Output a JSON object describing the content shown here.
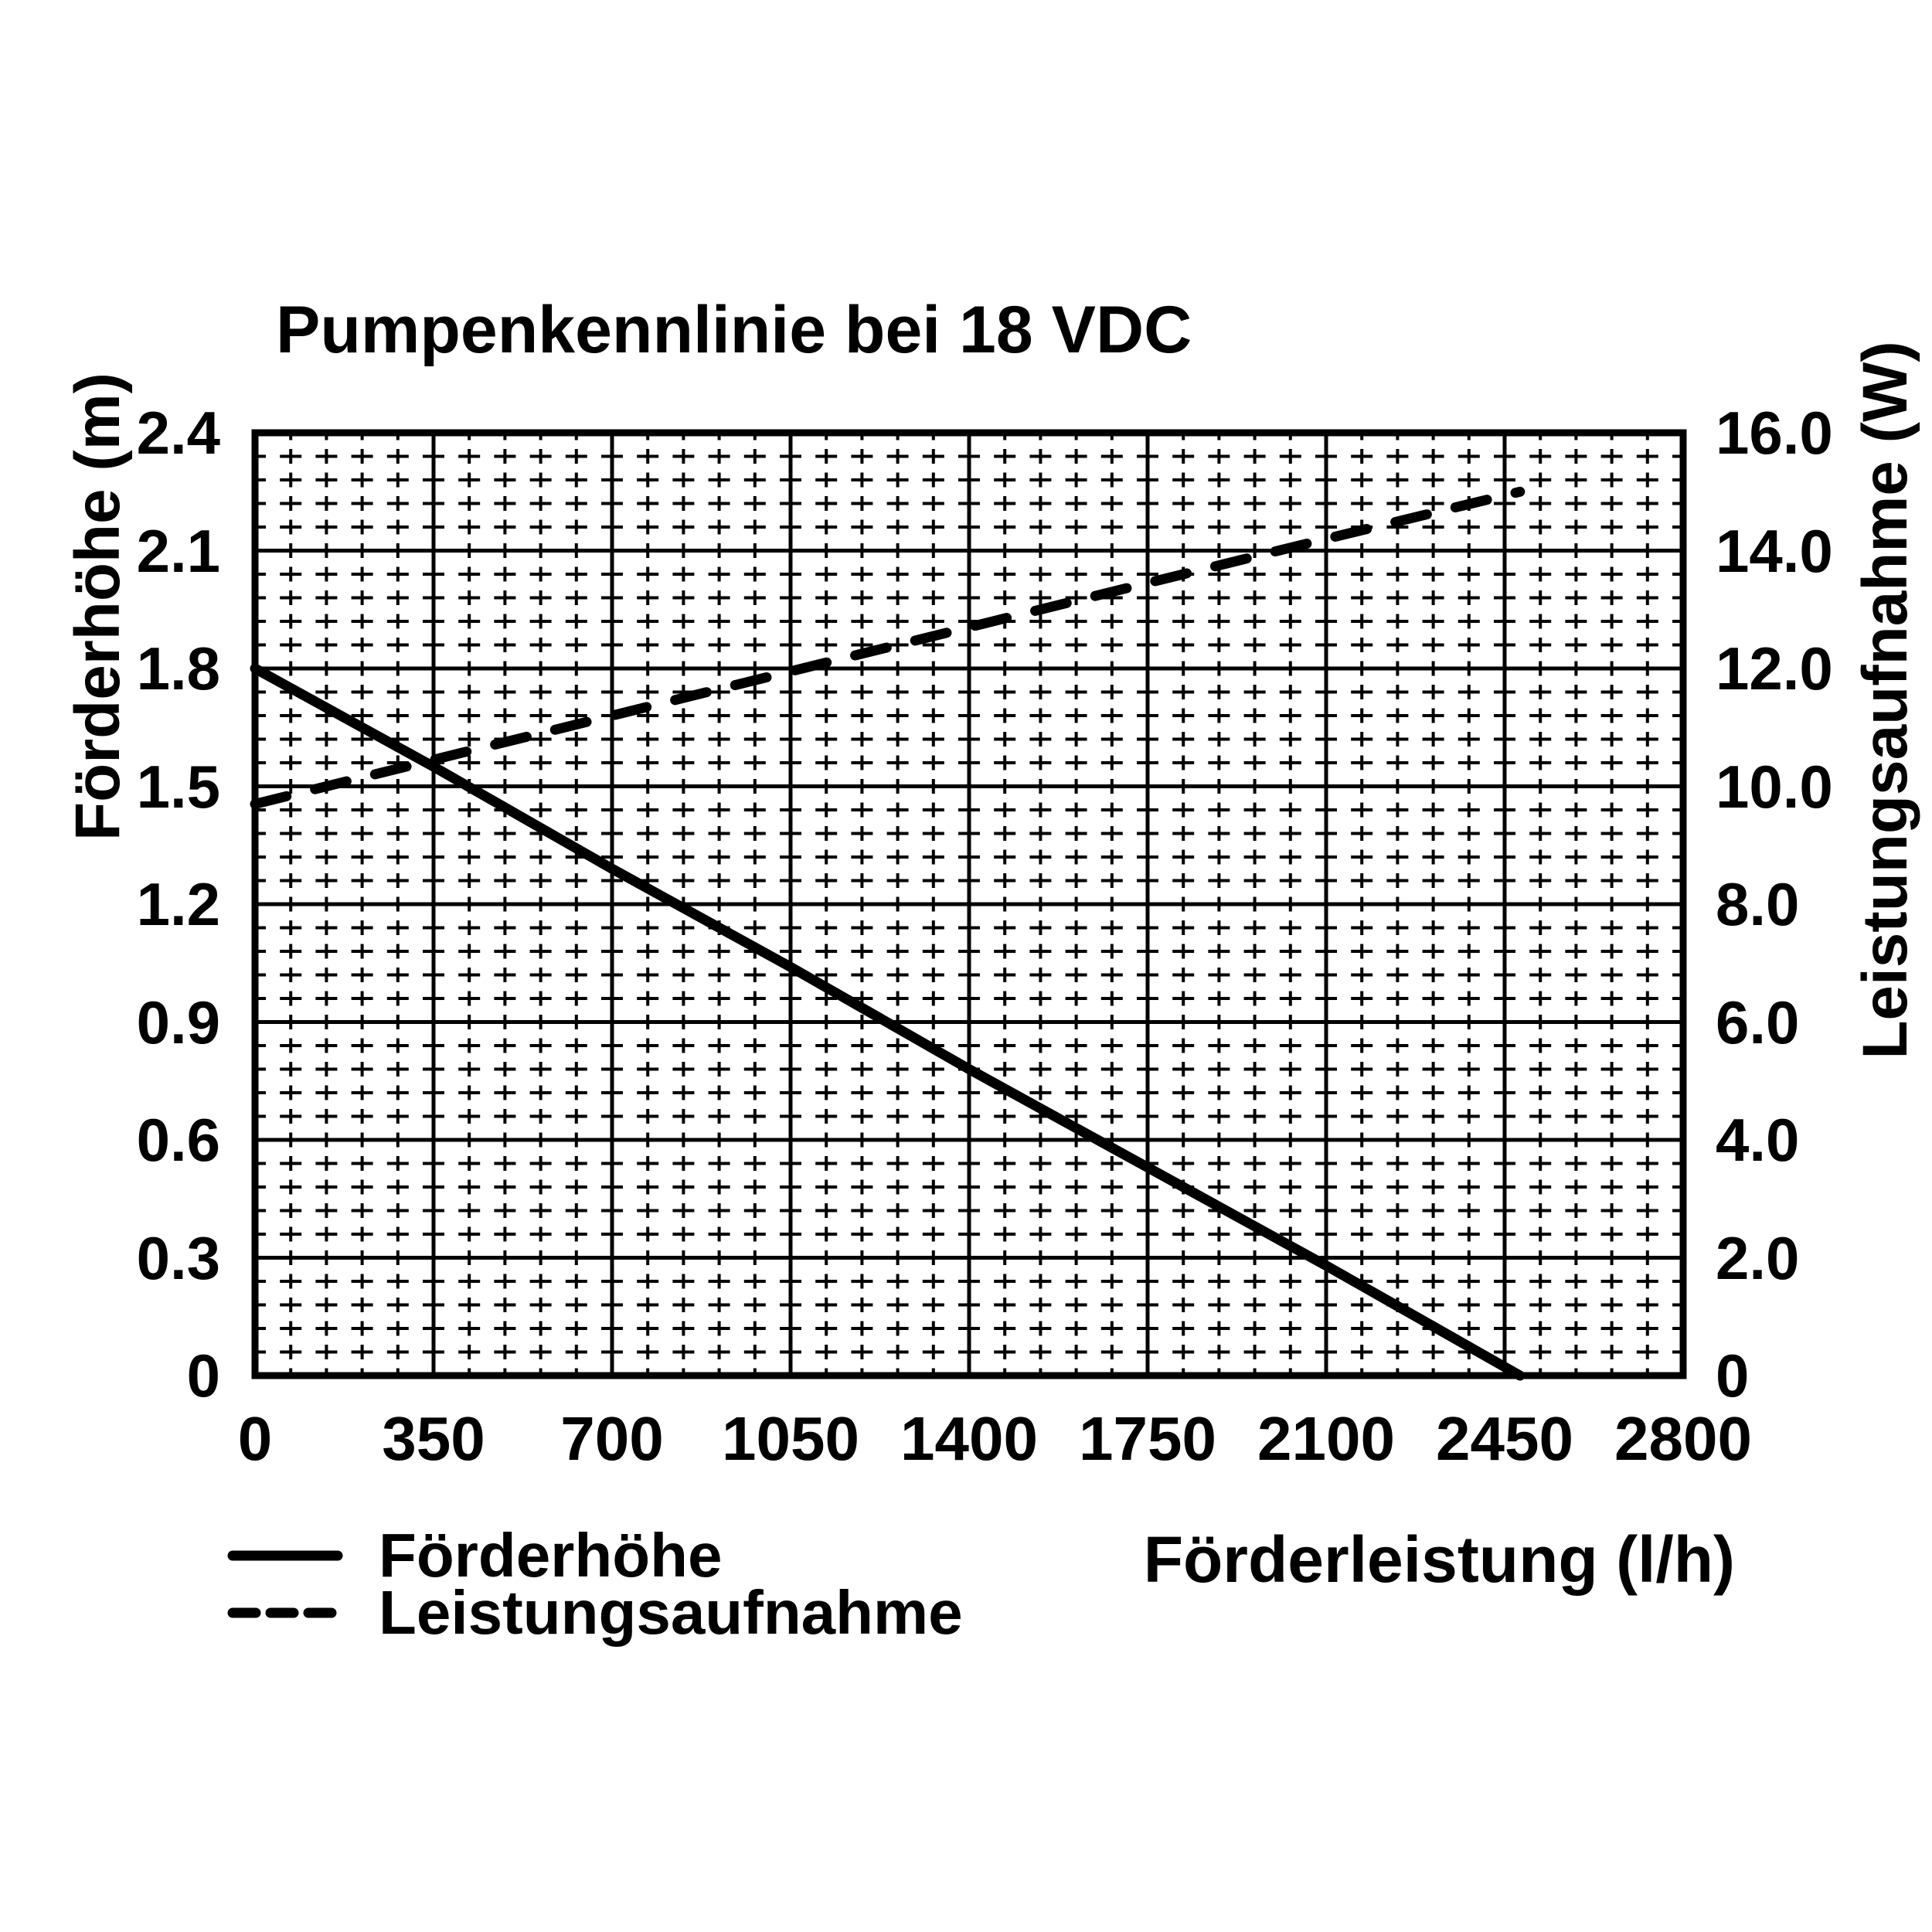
{
  "chart_data": {
    "type": "line",
    "title": "Pumpenkennlinie bei 18 VDC",
    "x_axis": {
      "label": "Förderleistung (l/h)",
      "min": 0,
      "max": 2800,
      "major_tick_step": 350,
      "minor_divisions_per_major": 5,
      "tick_labels": [
        "0",
        "350",
        "700",
        "1050",
        "1400",
        "1750",
        "2100",
        "2450",
        "2800"
      ]
    },
    "y_axis_left": {
      "label": "Förderhöhe (m)",
      "min": 0,
      "max": 2.4,
      "major_tick_step": 0.3,
      "minor_divisions_per_major": 5,
      "tick_labels": [
        "2.4",
        "2.1",
        "1.8",
        "1.5",
        "1.2",
        "0.9",
        "0.6",
        "0.3",
        "0"
      ]
    },
    "y_axis_right": {
      "label": "Leistungsaufnahme (W)",
      "min": 0,
      "max": 16.0,
      "major_tick_step": 2.0,
      "minor_divisions_per_major": 5,
      "tick_labels": [
        "16.0",
        "14.0",
        "12.0",
        "10.0",
        "8.0",
        "6.0",
        "4.0",
        "2.0",
        "0"
      ]
    },
    "grid": {
      "major": "solid",
      "minor": "dashed"
    },
    "legend_position": "bottom-left",
    "series": [
      {
        "name": "Förderhöhe",
        "axis": "left",
        "line_style": "solid",
        "color": "#000000",
        "points": [
          [
            0,
            1.8
          ],
          [
            350,
            1.55
          ],
          [
            700,
            1.29
          ],
          [
            1050,
            1.04
          ],
          [
            1400,
            0.78
          ],
          [
            1750,
            0.53
          ],
          [
            2100,
            0.28
          ],
          [
            2480,
            0.0
          ]
        ]
      },
      {
        "name": "Leistungsaufnahme",
        "axis": "right",
        "line_style": "dashed",
        "color": "#000000",
        "points": [
          [
            0,
            9.7
          ],
          [
            350,
            10.45
          ],
          [
            700,
            11.2
          ],
          [
            1050,
            11.95
          ],
          [
            1400,
            12.7
          ],
          [
            1750,
            13.45
          ],
          [
            2100,
            14.2
          ],
          [
            2480,
            15.0
          ]
        ]
      }
    ],
    "legend": [
      {
        "label": "Förderhöhe",
        "line_style": "solid"
      },
      {
        "label": "Leistungsaufnahme",
        "line_style": "dashed"
      }
    ]
  }
}
